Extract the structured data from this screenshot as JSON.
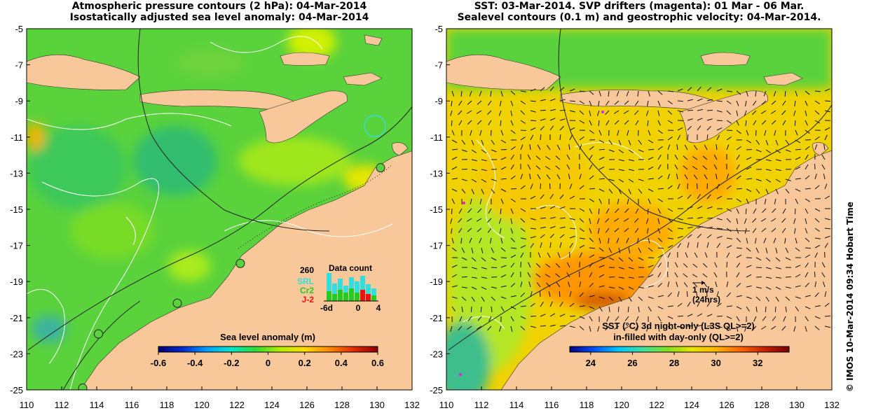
{
  "left_panel": {
    "title_line1": "Atmospheric pressure contours (2 hPa): 04-Mar-2014",
    "title_line2": "Isostatically adjusted sea level anomaly: 04-Mar-2014",
    "colorbar": {
      "label": "Sea level anomaly (m)",
      "ticks": [
        "-0.6",
        "-0.4",
        "-0.2",
        "0",
        "0.2",
        "0.4",
        "0.6"
      ],
      "min": -0.6,
      "max": 0.6
    },
    "data_count": {
      "title": "Data count",
      "max_label": "260",
      "series": [
        {
          "name": "SRL",
          "color": "#33dddd"
        },
        {
          "name": "Cr2",
          "color": "#22cc22"
        },
        {
          "name": "J-2",
          "color": "#ee1111"
        }
      ],
      "x_ticks": [
        "-6d",
        "0",
        "4"
      ]
    },
    "stations": [
      {
        "lon": 130.2,
        "lat": -12.7
      },
      {
        "lon": 122.2,
        "lat": -18.0
      },
      {
        "lon": 118.6,
        "lat": -20.2
      },
      {
        "lon": 114.1,
        "lat": -21.9
      },
      {
        "lon": 113.2,
        "lat": -24.9
      }
    ]
  },
  "right_panel": {
    "title_line1": "SST: 03-Mar-2014. SVP drifters (magenta): 01 Mar - 06 Mar.",
    "title_line2": "Sealevel contours (0.1 m) and geostrophic velocity: 04-Mar-2014.",
    "colorbar": {
      "label_line1": "SST (°C)  3d night-only (L3S QL>=2)",
      "label_line2": "in-filled with day-only (QL>=2)",
      "ticks": [
        "24",
        "26",
        "28",
        "30",
        "32"
      ],
      "min": 23,
      "max": 33.5
    },
    "scale_arrow": {
      "label": "1 m/s",
      "sublabel": "(24hrs)"
    }
  },
  "axes": {
    "lon_ticks": [
      "110",
      "112",
      "114",
      "116",
      "118",
      "120",
      "122",
      "124",
      "126",
      "128",
      "130",
      "132"
    ],
    "lat_ticks": [
      "-5",
      "-7",
      "-9",
      "-11",
      "-13",
      "-15",
      "-17",
      "-19",
      "-21",
      "-23",
      "-25"
    ],
    "lon_range": [
      110,
      132
    ],
    "lat_range": [
      -25,
      -5
    ]
  },
  "credit": "© IMOS 10-Mar-2014 09:34 Hobart Time",
  "colors": {
    "land": "#f9c89a",
    "sla_scale": [
      "#00006e",
      "#0028d2",
      "#00a0ff",
      "#00e6c8",
      "#32dc32",
      "#b4f000",
      "#ffdc00",
      "#ff8c00",
      "#e62800",
      "#8c0000"
    ],
    "sst_scale": [
      "#000080",
      "#0050ff",
      "#00c8ff",
      "#40e0a0",
      "#80e020",
      "#e6e600",
      "#ffb400",
      "#ff6400",
      "#c81e00",
      "#780000"
    ]
  }
}
